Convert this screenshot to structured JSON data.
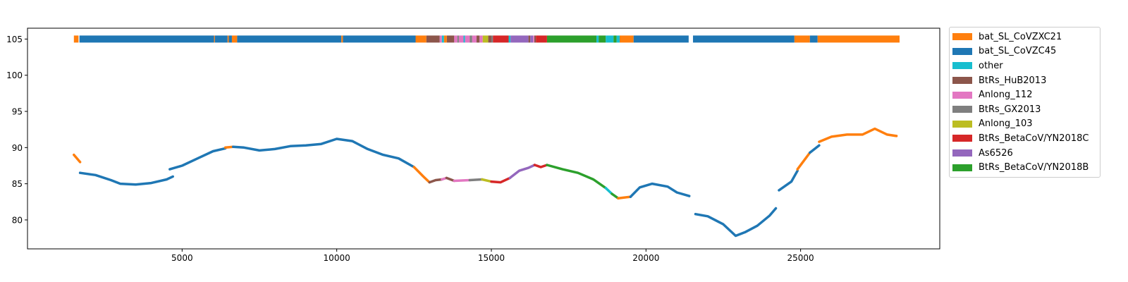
{
  "chart_data": {
    "type": "line",
    "title": "",
    "xlabel": "",
    "ylabel": "",
    "xlim": [
      0,
      29500
    ],
    "ylim": [
      76,
      106.5
    ],
    "x_ticks": [
      5000,
      10000,
      15000,
      20000,
      25000
    ],
    "y_ticks": [
      80,
      85,
      90,
      95,
      100,
      105
    ],
    "grid": false,
    "legend_position": "outside-right",
    "colors": {
      "bat_SL_CoVZXC21": "#ff7f0e",
      "bat_SL_CoVZC45": "#1f77b4",
      "other": "#17becf",
      "BtRs_HuB2013": "#8c564b",
      "Anlong_112": "#e377c2",
      "BtRs_GX2013": "#7f7f7f",
      "Anlong_103": "#bcbd22",
      "BtRs_BetaCoV/YN2018C": "#d62728",
      "As6526": "#9467bd",
      "BtRs_BetaCoV/YN2018B": "#2ca02c"
    },
    "legend": [
      "bat_SL_CoVZXC21",
      "bat_SL_CoVZC45",
      "other",
      "BtRs_HuB2013",
      "Anlong_112",
      "BtRs_GX2013",
      "Anlong_103",
      "BtRs_BetaCoV/YN2018C",
      "As6526",
      "BtRs_BetaCoV/YN2018B"
    ],
    "series": [
      {
        "name": "bat_SL_CoVZXC21",
        "points": [
          [
            1500,
            89.0
          ],
          [
            1700,
            88.0
          ]
        ]
      },
      {
        "name": "bat_SL_CoVZC45",
        "points": [
          [
            1700,
            86.5
          ],
          [
            2200,
            86.2
          ],
          [
            2700,
            85.5
          ],
          [
            3000,
            85.0
          ],
          [
            3500,
            84.9
          ],
          [
            4000,
            85.1
          ],
          [
            4500,
            85.6
          ],
          [
            4700,
            86.0
          ]
        ]
      },
      {
        "name": "bat_SL_CoVZC45",
        "points": [
          [
            4600,
            87.0
          ],
          [
            5000,
            87.5
          ],
          [
            5500,
            88.5
          ],
          [
            6000,
            89.5
          ],
          [
            6400,
            89.9
          ]
        ]
      },
      {
        "name": "bat_SL_CoVZXC21",
        "points": [
          [
            6400,
            90.0
          ],
          [
            6650,
            90.1
          ]
        ]
      },
      {
        "name": "bat_SL_CoVZC45",
        "points": [
          [
            6650,
            90.1
          ],
          [
            7000,
            90.0
          ],
          [
            7500,
            89.6
          ],
          [
            8000,
            89.8
          ],
          [
            8500,
            90.2
          ],
          [
            9000,
            90.3
          ],
          [
            9500,
            90.5
          ],
          [
            10000,
            91.2
          ],
          [
            10500,
            90.9
          ],
          [
            11000,
            89.8
          ],
          [
            11500,
            89.0
          ],
          [
            12000,
            88.5
          ],
          [
            12500,
            87.3
          ]
        ]
      },
      {
        "name": "bat_SL_CoVZXC21",
        "points": [
          [
            12500,
            87.3
          ],
          [
            12800,
            86.0
          ],
          [
            13000,
            85.2
          ]
        ]
      },
      {
        "name": "BtRs_HuB2013",
        "points": [
          [
            13000,
            85.2
          ],
          [
            13200,
            85.5
          ],
          [
            13400,
            85.6
          ]
        ]
      },
      {
        "name": "Anlong_112",
        "points": [
          [
            13400,
            85.6
          ],
          [
            13550,
            85.8
          ]
        ]
      },
      {
        "name": "BtRs_HuB2013",
        "points": [
          [
            13550,
            85.8
          ],
          [
            13800,
            85.4
          ]
        ]
      },
      {
        "name": "Anlong_112",
        "points": [
          [
            13800,
            85.4
          ],
          [
            14300,
            85.5
          ]
        ]
      },
      {
        "name": "BtRs_GX2013",
        "points": [
          [
            14300,
            85.5
          ],
          [
            14700,
            85.6
          ]
        ]
      },
      {
        "name": "Anlong_103",
        "points": [
          [
            14700,
            85.6
          ],
          [
            15000,
            85.3
          ]
        ]
      },
      {
        "name": "BtRs_BetaCoV/YN2018C",
        "points": [
          [
            15000,
            85.3
          ],
          [
            15300,
            85.2
          ],
          [
            15600,
            85.8
          ]
        ]
      },
      {
        "name": "As6526",
        "points": [
          [
            15600,
            85.8
          ],
          [
            15900,
            86.8
          ],
          [
            16200,
            87.2
          ],
          [
            16400,
            87.6
          ]
        ]
      },
      {
        "name": "BtRs_BetaCoV/YN2018C",
        "points": [
          [
            16400,
            87.6
          ],
          [
            16600,
            87.3
          ],
          [
            16800,
            87.6
          ]
        ]
      },
      {
        "name": "BtRs_BetaCoV/YN2018B",
        "points": [
          [
            16800,
            87.6
          ],
          [
            17300,
            87.0
          ],
          [
            17800,
            86.5
          ],
          [
            18300,
            85.6
          ],
          [
            18700,
            84.4
          ]
        ]
      },
      {
        "name": "other",
        "points": [
          [
            18700,
            84.4
          ],
          [
            18900,
            83.6
          ]
        ]
      },
      {
        "name": "BtRs_BetaCoV/YN2018B",
        "points": [
          [
            18900,
            83.6
          ],
          [
            19100,
            83.0
          ]
        ]
      },
      {
        "name": "bat_SL_CoVZXC21",
        "points": [
          [
            19100,
            83.0
          ],
          [
            19500,
            83.2
          ]
        ]
      },
      {
        "name": "bat_SL_CoVZC45",
        "points": [
          [
            19500,
            83.2
          ],
          [
            19800,
            84.5
          ],
          [
            20200,
            85.0
          ],
          [
            20700,
            84.6
          ],
          [
            21000,
            83.8
          ],
          [
            21400,
            83.3
          ]
        ]
      },
      {
        "name": "bat_SL_CoVZC45",
        "points": [
          [
            21600,
            80.8
          ],
          [
            22000,
            80.5
          ],
          [
            22500,
            79.4
          ],
          [
            22900,
            77.8
          ],
          [
            23200,
            78.3
          ],
          [
            23600,
            79.2
          ],
          [
            24000,
            80.6
          ],
          [
            24200,
            81.6
          ]
        ]
      },
      {
        "name": "bat_SL_CoVZC45",
        "points": [
          [
            24300,
            84.1
          ],
          [
            24700,
            85.3
          ],
          [
            24900,
            86.8
          ]
        ]
      },
      {
        "name": "bat_SL_CoVZXC21",
        "points": [
          [
            24900,
            87.0
          ],
          [
            25300,
            89.3
          ]
        ]
      },
      {
        "name": "bat_SL_CoVZC45",
        "points": [
          [
            25300,
            89.3
          ],
          [
            25600,
            90.3
          ]
        ]
      },
      {
        "name": "bat_SL_CoVZXC21",
        "points": [
          [
            25600,
            90.8
          ],
          [
            26000,
            91.5
          ],
          [
            26500,
            91.8
          ],
          [
            27000,
            91.8
          ],
          [
            27400,
            92.6
          ],
          [
            27800,
            91.8
          ],
          [
            28100,
            91.6
          ]
        ]
      }
    ],
    "bar_track": {
      "y": 105,
      "segments": [
        {
          "name": "bat_SL_CoVZXC21",
          "start": 1500,
          "end": 1650
        },
        {
          "name": "bat_SL_CoVZC45",
          "start": 1680,
          "end": 6030
        },
        {
          "name": "bat_SL_CoVZXC21",
          "start": 6030,
          "end": 6060
        },
        {
          "name": "bat_SL_CoVZC45",
          "start": 6060,
          "end": 6470
        },
        {
          "name": "bat_SL_CoVZXC21",
          "start": 6470,
          "end": 6510
        },
        {
          "name": "bat_SL_CoVZC45",
          "start": 6510,
          "end": 6610
        },
        {
          "name": "bat_SL_CoVZXC21",
          "start": 6610,
          "end": 6780
        },
        {
          "name": "bat_SL_CoVZC45",
          "start": 6780,
          "end": 10150
        },
        {
          "name": "bat_SL_CoVZXC21",
          "start": 10150,
          "end": 10200
        },
        {
          "name": "bat_SL_CoVZC45",
          "start": 10200,
          "end": 12550
        },
        {
          "name": "bat_SL_CoVZXC21",
          "start": 12550,
          "end": 12900
        },
        {
          "name": "BtRs_HuB2013",
          "start": 12900,
          "end": 13330
        },
        {
          "name": "Anlong_112",
          "start": 13330,
          "end": 13400
        },
        {
          "name": "other",
          "start": 13400,
          "end": 13470
        },
        {
          "name": "bat_SL_CoVZXC21",
          "start": 13470,
          "end": 13560
        },
        {
          "name": "BtRs_HuB2013",
          "start": 13560,
          "end": 13800
        },
        {
          "name": "Anlong_112",
          "start": 13800,
          "end": 13900
        },
        {
          "name": "BtRs_GX2013",
          "start": 13900,
          "end": 13950
        },
        {
          "name": "Anlong_112",
          "start": 13950,
          "end": 14100
        },
        {
          "name": "other",
          "start": 14100,
          "end": 14150
        },
        {
          "name": "Anlong_112",
          "start": 14150,
          "end": 14300
        },
        {
          "name": "BtRs_GX2013",
          "start": 14300,
          "end": 14380
        },
        {
          "name": "Anlong_112",
          "start": 14380,
          "end": 14520
        },
        {
          "name": "BtRs_HuB2013",
          "start": 14520,
          "end": 14620
        },
        {
          "name": "Anlong_112",
          "start": 14620,
          "end": 14720
        },
        {
          "name": "Anlong_103",
          "start": 14720,
          "end": 14900
        },
        {
          "name": "BtRs_HuB2013",
          "start": 14900,
          "end": 15000
        },
        {
          "name": "BtRs_GX2013",
          "start": 15000,
          "end": 15050
        },
        {
          "name": "BtRs_BetaCoV/YN2018C",
          "start": 15050,
          "end": 15560
        },
        {
          "name": "other",
          "start": 15560,
          "end": 15620
        },
        {
          "name": "As6526",
          "start": 15620,
          "end": 16200
        },
        {
          "name": "BtRs_HuB2013",
          "start": 16200,
          "end": 16260
        },
        {
          "name": "As6526",
          "start": 16260,
          "end": 16350
        },
        {
          "name": "Anlong_112",
          "start": 16350,
          "end": 16390
        },
        {
          "name": "BtRs_HuB2013",
          "start": 16390,
          "end": 16440
        },
        {
          "name": "BtRs_BetaCoV/YN2018C",
          "start": 16440,
          "end": 16800
        },
        {
          "name": "BtRs_BetaCoV/YN2018B",
          "start": 16800,
          "end": 18400
        },
        {
          "name": "other",
          "start": 18400,
          "end": 18470
        },
        {
          "name": "BtRs_BetaCoV/YN2018B",
          "start": 18470,
          "end": 18700
        },
        {
          "name": "other",
          "start": 18700,
          "end": 18950
        },
        {
          "name": "BtRs_BetaCoV/YN2018B",
          "start": 18950,
          "end": 19050
        },
        {
          "name": "other",
          "start": 19050,
          "end": 19150
        },
        {
          "name": "bat_SL_CoVZXC21",
          "start": 19150,
          "end": 19600
        },
        {
          "name": "bat_SL_CoVZC45",
          "start": 19600,
          "end": 21380
        },
        {
          "name": "bat_SL_CoVZC45",
          "start": 21520,
          "end": 24800
        },
        {
          "name": "bat_SL_CoVZXC21",
          "start": 24800,
          "end": 25300
        },
        {
          "name": "bat_SL_CoVZC45",
          "start": 25300,
          "end": 25550
        },
        {
          "name": "bat_SL_CoVZXC21",
          "start": 25550,
          "end": 28200
        }
      ]
    }
  }
}
